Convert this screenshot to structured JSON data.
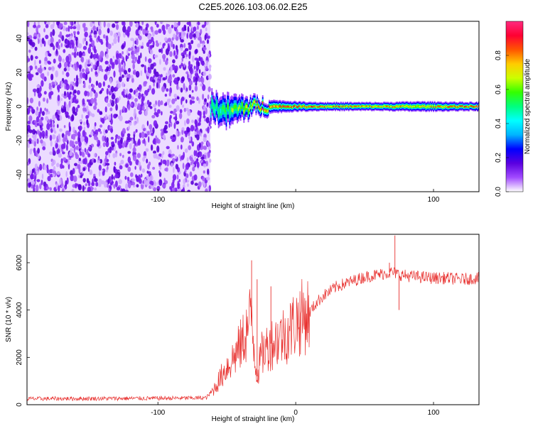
{
  "figure": {
    "title": "C2E5.2026.103.06.02.E25"
  },
  "chart_data": [
    {
      "type": "heatmap",
      "xlabel": "Height of straight line (km)",
      "ylabel": "Frequency (Hz)",
      "xlim": [
        -195,
        133
      ],
      "ylim": [
        -50,
        50
      ],
      "xticks": [
        -100,
        0,
        100
      ],
      "xtick_labels": [
        "-100",
        "",
        "100"
      ],
      "yticks": [
        -40,
        -20,
        0,
        20,
        40
      ],
      "ytick_labels": [
        "-40",
        "-20",
        "0",
        "20",
        "40"
      ],
      "noise_region": {
        "x": [
          -195,
          -62
        ],
        "freq": [
          -50,
          50
        ]
      },
      "signal_track": [
        {
          "x": -62,
          "freq": 0,
          "width": 8,
          "amp": 0.45
        },
        {
          "x": -50,
          "freq": -3,
          "width": 9,
          "amp": 0.55
        },
        {
          "x": -40,
          "freq": -1,
          "width": 7,
          "amp": 0.6
        },
        {
          "x": -30,
          "freq": 0,
          "width": 5,
          "amp": 0.75
        },
        {
          "x": -20,
          "freq": 0,
          "width": 4,
          "amp": 0.8
        },
        {
          "x": 0,
          "freq": 0,
          "width": 3,
          "amp": 0.85
        },
        {
          "x": 20,
          "freq": 0,
          "width": 2.5,
          "amp": 0.8
        },
        {
          "x": 60,
          "freq": 0,
          "width": 2.5,
          "amp": 0.75
        },
        {
          "x": 90,
          "freq": 0,
          "width": 3,
          "amp": 0.7
        },
        {
          "x": 133,
          "freq": 0,
          "width": 2.5,
          "amp": 0.9
        }
      ],
      "colorbar": {
        "label": "Normalized spectral amplitude",
        "range": [
          0,
          1
        ],
        "ticks": [
          0,
          0.2,
          0.4,
          0.6,
          0.8
        ],
        "tick_labels": [
          "0.0",
          "0.2",
          "0.4",
          "0.6",
          "0.8"
        ],
        "colors": [
          "#ffffff",
          "#a24bff",
          "#5a00e0",
          "#0000ff",
          "#00b4ff",
          "#00ffff",
          "#00ff7f",
          "#33ff00",
          "#ccff00",
          "#ffcc00",
          "#ff5500",
          "#ff0033",
          "#ff2a7f"
        ]
      }
    },
    {
      "type": "line",
      "xlabel": "Height of straight line (km)",
      "ylabel": "SNR (10 * v/v)",
      "xlim": [
        -195,
        133
      ],
      "ylim": [
        0,
        7200
      ],
      "xticks": [
        -100,
        0,
        100
      ],
      "xtick_labels": [
        "-100",
        "0",
        "100"
      ],
      "yticks": [
        0,
        2000,
        4000,
        6000
      ],
      "ytick_labels": [
        "0",
        "2000",
        "4000",
        "6000"
      ],
      "series": [
        {
          "color": "#e8302e",
          "x": [
            -195,
            -150,
            -100,
            -80,
            -65,
            -60,
            -55,
            -50,
            -45,
            -40,
            -35,
            -32,
            -30,
            -28,
            -25,
            -20,
            -15,
            -10,
            -5,
            0,
            5,
            10,
            15,
            20,
            30,
            40,
            50,
            60,
            65,
            70,
            75,
            80,
            90,
            100,
            110,
            120,
            133
          ],
          "y": [
            250,
            260,
            270,
            280,
            290,
            600,
            1100,
            1600,
            2000,
            2500,
            3200,
            3800,
            2300,
            1200,
            2100,
            2500,
            2700,
            2900,
            3100,
            3500,
            3700,
            3900,
            4300,
            4600,
            5000,
            5200,
            5400,
            5500,
            5550,
            5600,
            5500,
            5450,
            5400,
            5350,
            5350,
            5300,
            5350
          ],
          "spikes": [
            {
              "x": -32,
              "y": 6100
            },
            {
              "x": -28,
              "y": 5300
            },
            {
              "x": -18,
              "y": 5000
            },
            {
              "x": 68,
              "y": 6000
            },
            {
              "x": 72,
              "y": 7150
            },
            {
              "x": 75,
              "y": 4000
            }
          ]
        }
      ]
    }
  ]
}
